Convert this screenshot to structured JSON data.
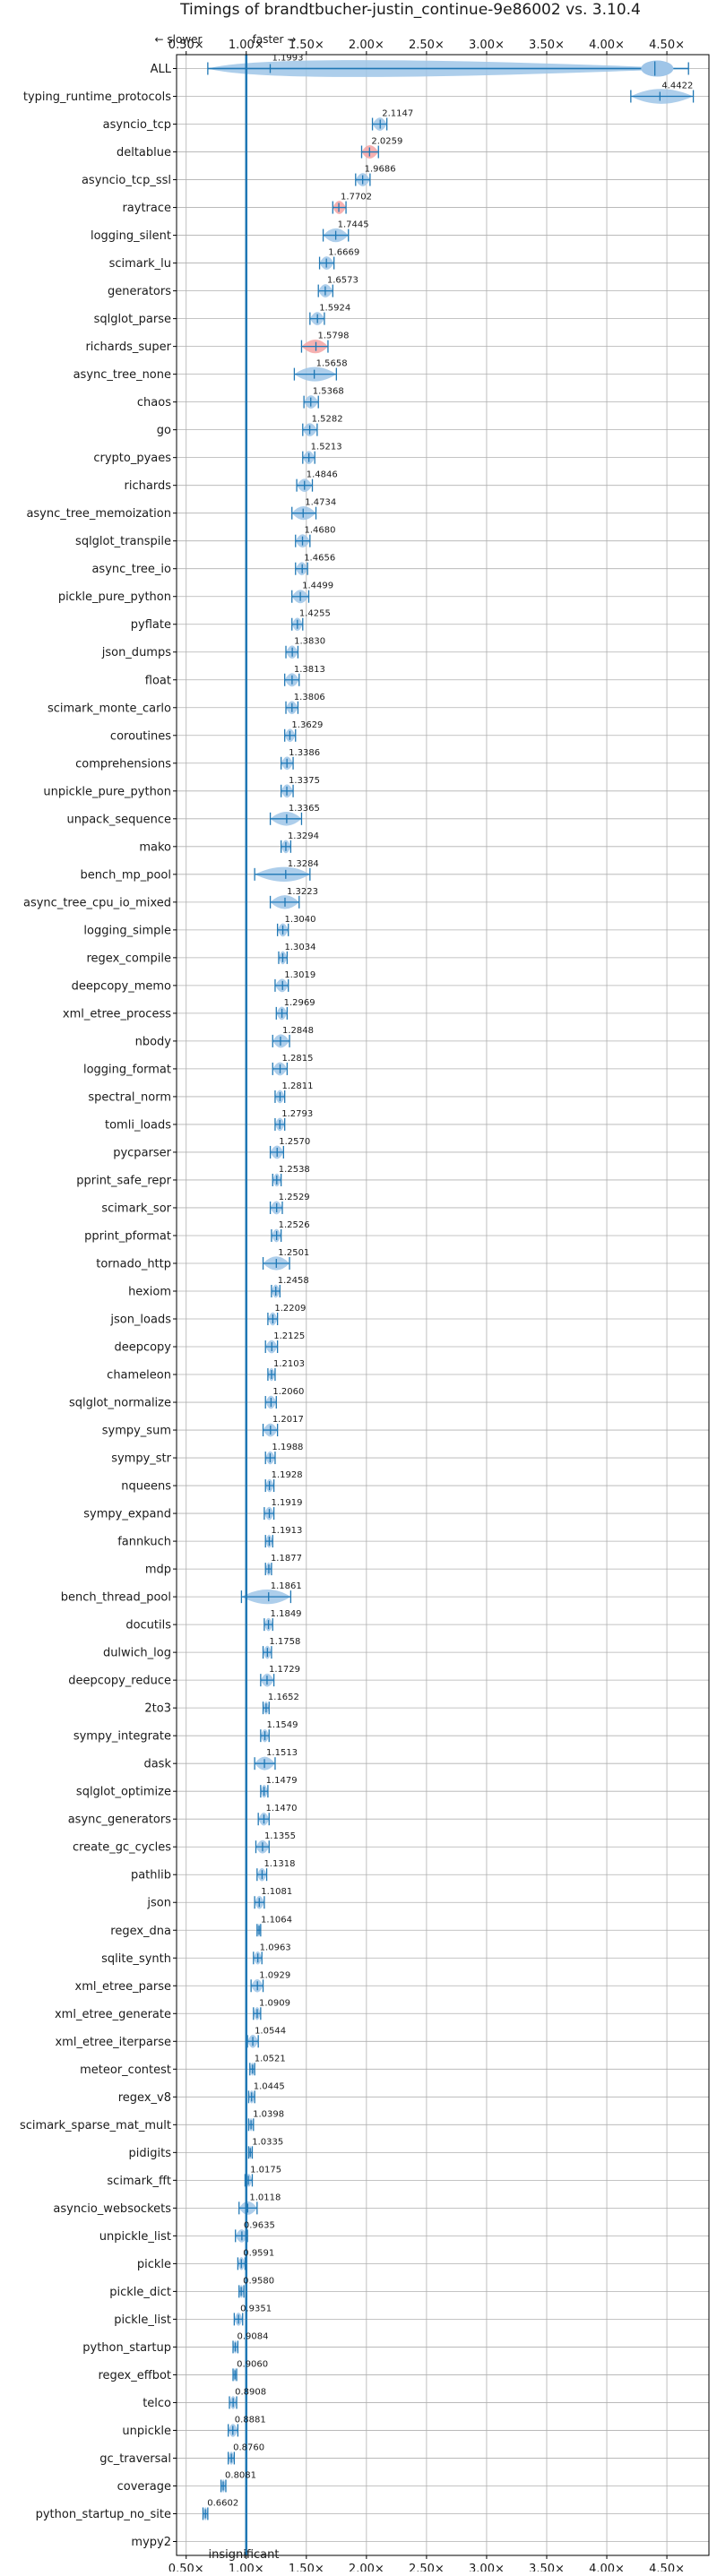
{
  "chart_data": {
    "type": "violin",
    "title": "Timings of brandtbucher-justin_continue-9e86002 vs. 3.10.4",
    "xlim": [
      0.42,
      4.85
    ],
    "xticks": [
      0.5,
      1.0,
      1.5,
      2.0,
      2.5,
      3.0,
      3.5,
      4.0,
      4.5
    ],
    "xtick_labels": [
      "0.50×",
      "1.00×",
      "1.50×",
      "2.00×",
      "2.50×",
      "3.00×",
      "3.50×",
      "4.00×",
      "4.50×"
    ],
    "reference_line": 1.0,
    "direction_labels": {
      "slower": "← slower",
      "faster": "faster →"
    },
    "insignificant_label": "insignificant",
    "grid": true,
    "colors": {
      "violin": "#9fc5e8",
      "line": "#1f77b4",
      "highlight": "#f4a3a3"
    },
    "benchmarks": [
      {
        "name": "ALL",
        "value": 1.1993,
        "label": "1.1993",
        "min": 0.68,
        "max": 4.68
      },
      {
        "name": "typing_runtime_protocols",
        "value": 4.4422,
        "label": "4.4422",
        "min": 4.2,
        "max": 4.72
      },
      {
        "name": "asyncio_tcp",
        "value": 2.1147,
        "label": "2.1147",
        "min": 2.05,
        "max": 2.17
      },
      {
        "name": "deltablue",
        "value": 2.0259,
        "label": "2.0259",
        "min": 1.96,
        "max": 2.1
      },
      {
        "name": "asyncio_tcp_ssl",
        "value": 1.9686,
        "label": "1.9686",
        "min": 1.91,
        "max": 2.03
      },
      {
        "name": "raytrace",
        "value": 1.7702,
        "label": "1.7702",
        "min": 1.72,
        "max": 1.83
      },
      {
        "name": "logging_silent",
        "value": 1.7445,
        "label": "1.7445",
        "min": 1.64,
        "max": 1.85
      },
      {
        "name": "scimark_lu",
        "value": 1.6669,
        "label": "1.6669",
        "min": 1.61,
        "max": 1.73
      },
      {
        "name": "generators",
        "value": 1.6573,
        "label": "1.6573",
        "min": 1.6,
        "max": 1.72
      },
      {
        "name": "sqlglot_parse",
        "value": 1.5924,
        "label": "1.5924",
        "min": 1.53,
        "max": 1.65
      },
      {
        "name": "richards_super",
        "value": 1.5798,
        "label": "1.5798",
        "min": 1.46,
        "max": 1.68
      },
      {
        "name": "async_tree_none",
        "value": 1.5658,
        "label": "1.5658",
        "min": 1.4,
        "max": 1.75
      },
      {
        "name": "chaos",
        "value": 1.5368,
        "label": "1.5368",
        "min": 1.48,
        "max": 1.6
      },
      {
        "name": "go",
        "value": 1.5282,
        "label": "1.5282",
        "min": 1.47,
        "max": 1.59
      },
      {
        "name": "crypto_pyaes",
        "value": 1.5213,
        "label": "1.5213",
        "min": 1.47,
        "max": 1.57
      },
      {
        "name": "richards",
        "value": 1.4846,
        "label": "1.4846",
        "min": 1.42,
        "max": 1.55
      },
      {
        "name": "async_tree_memoization",
        "value": 1.4734,
        "label": "1.4734",
        "min": 1.38,
        "max": 1.58
      },
      {
        "name": "sqlglot_transpile",
        "value": 1.468,
        "label": "1.4680",
        "min": 1.41,
        "max": 1.53
      },
      {
        "name": "async_tree_io",
        "value": 1.4656,
        "label": "1.4656",
        "min": 1.41,
        "max": 1.51
      },
      {
        "name": "pickle_pure_python",
        "value": 1.4499,
        "label": "1.4499",
        "min": 1.38,
        "max": 1.52
      },
      {
        "name": "pyflate",
        "value": 1.4255,
        "label": "1.4255",
        "min": 1.38,
        "max": 1.47
      },
      {
        "name": "json_dumps",
        "value": 1.383,
        "label": "1.3830",
        "min": 1.33,
        "max": 1.43
      },
      {
        "name": "float",
        "value": 1.3813,
        "label": "1.3813",
        "min": 1.32,
        "max": 1.44
      },
      {
        "name": "scimark_monte_carlo",
        "value": 1.3806,
        "label": "1.3806",
        "min": 1.33,
        "max": 1.43
      },
      {
        "name": "coroutines",
        "value": 1.3629,
        "label": "1.3629",
        "min": 1.32,
        "max": 1.41
      },
      {
        "name": "comprehensions",
        "value": 1.3386,
        "label": "1.3386",
        "min": 1.29,
        "max": 1.39
      },
      {
        "name": "unpickle_pure_python",
        "value": 1.3375,
        "label": "1.3375",
        "min": 1.29,
        "max": 1.39
      },
      {
        "name": "unpack_sequence",
        "value": 1.3365,
        "label": "1.3365",
        "min": 1.2,
        "max": 1.46
      },
      {
        "name": "mako",
        "value": 1.3294,
        "label": "1.3294",
        "min": 1.29,
        "max": 1.37
      },
      {
        "name": "bench_mp_pool",
        "value": 1.3284,
        "label": "1.3284",
        "min": 1.07,
        "max": 1.53
      },
      {
        "name": "async_tree_cpu_io_mixed",
        "value": 1.3223,
        "label": "1.3223",
        "min": 1.2,
        "max": 1.44
      },
      {
        "name": "logging_simple",
        "value": 1.304,
        "label": "1.3040",
        "min": 1.26,
        "max": 1.35
      },
      {
        "name": "regex_compile",
        "value": 1.3034,
        "label": "1.3034",
        "min": 1.27,
        "max": 1.34
      },
      {
        "name": "deepcopy_memo",
        "value": 1.3019,
        "label": "1.3019",
        "min": 1.24,
        "max": 1.35
      },
      {
        "name": "xml_etree_process",
        "value": 1.2969,
        "label": "1.2969",
        "min": 1.25,
        "max": 1.34
      },
      {
        "name": "nbody",
        "value": 1.2848,
        "label": "1.2848",
        "min": 1.22,
        "max": 1.36
      },
      {
        "name": "logging_format",
        "value": 1.2815,
        "label": "1.2815",
        "min": 1.22,
        "max": 1.34
      },
      {
        "name": "spectral_norm",
        "value": 1.2811,
        "label": "1.2811",
        "min": 1.24,
        "max": 1.32
      },
      {
        "name": "tomli_loads",
        "value": 1.2793,
        "label": "1.2793",
        "min": 1.24,
        "max": 1.32
      },
      {
        "name": "pycparser",
        "value": 1.257,
        "label": "1.2570",
        "min": 1.2,
        "max": 1.31
      },
      {
        "name": "pprint_safe_repr",
        "value": 1.2538,
        "label": "1.2538",
        "min": 1.22,
        "max": 1.29
      },
      {
        "name": "scimark_sor",
        "value": 1.2529,
        "label": "1.2529",
        "min": 1.2,
        "max": 1.3
      },
      {
        "name": "pprint_pformat",
        "value": 1.2526,
        "label": "1.2526",
        "min": 1.21,
        "max": 1.29
      },
      {
        "name": "tornado_http",
        "value": 1.2501,
        "label": "1.2501",
        "min": 1.14,
        "max": 1.36
      },
      {
        "name": "hexiom",
        "value": 1.2458,
        "label": "1.2458",
        "min": 1.21,
        "max": 1.28
      },
      {
        "name": "json_loads",
        "value": 1.2209,
        "label": "1.2209",
        "min": 1.18,
        "max": 1.26
      },
      {
        "name": "deepcopy",
        "value": 1.2125,
        "label": "1.2125",
        "min": 1.16,
        "max": 1.26
      },
      {
        "name": "chameleon",
        "value": 1.2103,
        "label": "1.2103",
        "min": 1.18,
        "max": 1.24
      },
      {
        "name": "sqlglot_normalize",
        "value": 1.206,
        "label": "1.2060",
        "min": 1.16,
        "max": 1.25
      },
      {
        "name": "sympy_sum",
        "value": 1.2017,
        "label": "1.2017",
        "min": 1.14,
        "max": 1.26
      },
      {
        "name": "sympy_str",
        "value": 1.1988,
        "label": "1.1988",
        "min": 1.16,
        "max": 1.24
      },
      {
        "name": "nqueens",
        "value": 1.1928,
        "label": "1.1928",
        "min": 1.16,
        "max": 1.23
      },
      {
        "name": "sympy_expand",
        "value": 1.1919,
        "label": "1.1919",
        "min": 1.15,
        "max": 1.23
      },
      {
        "name": "fannkuch",
        "value": 1.1913,
        "label": "1.1913",
        "min": 1.16,
        "max": 1.22
      },
      {
        "name": "mdp",
        "value": 1.1877,
        "label": "1.1877",
        "min": 1.16,
        "max": 1.21
      },
      {
        "name": "bench_thread_pool",
        "value": 1.1861,
        "label": "1.1861",
        "min": 0.96,
        "max": 1.37
      },
      {
        "name": "docutils",
        "value": 1.1849,
        "label": "1.1849",
        "min": 1.15,
        "max": 1.22
      },
      {
        "name": "dulwich_log",
        "value": 1.1758,
        "label": "1.1758",
        "min": 1.14,
        "max": 1.21
      },
      {
        "name": "deepcopy_reduce",
        "value": 1.1729,
        "label": "1.1729",
        "min": 1.12,
        "max": 1.23
      },
      {
        "name": "2to3",
        "value": 1.1652,
        "label": "1.1652",
        "min": 1.14,
        "max": 1.19
      },
      {
        "name": "sympy_integrate",
        "value": 1.1549,
        "label": "1.1549",
        "min": 1.12,
        "max": 1.19
      },
      {
        "name": "dask",
        "value": 1.1513,
        "label": "1.1513",
        "min": 1.07,
        "max": 1.24
      },
      {
        "name": "sqlglot_optimize",
        "value": 1.1479,
        "label": "1.1479",
        "min": 1.12,
        "max": 1.18
      },
      {
        "name": "async_generators",
        "value": 1.147,
        "label": "1.1470",
        "min": 1.1,
        "max": 1.19
      },
      {
        "name": "create_gc_cycles",
        "value": 1.1355,
        "label": "1.1355",
        "min": 1.08,
        "max": 1.19
      },
      {
        "name": "pathlib",
        "value": 1.1318,
        "label": "1.1318",
        "min": 1.09,
        "max": 1.17
      },
      {
        "name": "json",
        "value": 1.1081,
        "label": "1.1081",
        "min": 1.07,
        "max": 1.15
      },
      {
        "name": "regex_dna",
        "value": 1.1064,
        "label": "1.1064",
        "min": 1.09,
        "max": 1.12
      },
      {
        "name": "sqlite_synth",
        "value": 1.0963,
        "label": "1.0963",
        "min": 1.06,
        "max": 1.13
      },
      {
        "name": "xml_etree_parse",
        "value": 1.0929,
        "label": "1.0929",
        "min": 1.04,
        "max": 1.14
      },
      {
        "name": "xml_etree_generate",
        "value": 1.0909,
        "label": "1.0909",
        "min": 1.06,
        "max": 1.12
      },
      {
        "name": "xml_etree_iterparse",
        "value": 1.0544,
        "label": "1.0544",
        "min": 1.01,
        "max": 1.1
      },
      {
        "name": "meteor_contest",
        "value": 1.0521,
        "label": "1.0521",
        "min": 1.03,
        "max": 1.07
      },
      {
        "name": "regex_v8",
        "value": 1.0445,
        "label": "1.0445",
        "min": 1.02,
        "max": 1.07
      },
      {
        "name": "scimark_sparse_mat_mult",
        "value": 1.0398,
        "label": "1.0398",
        "min": 1.02,
        "max": 1.06
      },
      {
        "name": "pidigits",
        "value": 1.0335,
        "label": "1.0335",
        "min": 1.02,
        "max": 1.05
      },
      {
        "name": "scimark_fft",
        "value": 1.0175,
        "label": "1.0175",
        "min": 0.99,
        "max": 1.05
      },
      {
        "name": "asyncio_websockets",
        "value": 1.0118,
        "label": "1.0118",
        "min": 0.94,
        "max": 1.09
      },
      {
        "name": "unpickle_list",
        "value": 0.9635,
        "label": "0.9635",
        "min": 0.91,
        "max": 1.01
      },
      {
        "name": "pickle",
        "value": 0.9591,
        "label": "0.9591",
        "min": 0.93,
        "max": 0.99
      },
      {
        "name": "pickle_dict",
        "value": 0.958,
        "label": "0.9580",
        "min": 0.94,
        "max": 0.98
      },
      {
        "name": "pickle_list",
        "value": 0.9351,
        "label": "0.9351",
        "min": 0.9,
        "max": 0.97
      },
      {
        "name": "python_startup",
        "value": 0.9084,
        "label": "0.9084",
        "min": 0.89,
        "max": 0.93
      },
      {
        "name": "regex_effbot",
        "value": 0.906,
        "label": "0.9060",
        "min": 0.89,
        "max": 0.92
      },
      {
        "name": "telco",
        "value": 0.8908,
        "label": "0.8908",
        "min": 0.86,
        "max": 0.92
      },
      {
        "name": "unpickle",
        "value": 0.8881,
        "label": "0.8881",
        "min": 0.85,
        "max": 0.93
      },
      {
        "name": "gc_traversal",
        "value": 0.876,
        "label": "0.8760",
        "min": 0.85,
        "max": 0.9
      },
      {
        "name": "coverage",
        "value": 0.8081,
        "label": "0.8081",
        "min": 0.79,
        "max": 0.83
      },
      {
        "name": "python_startup_no_site",
        "value": 0.6602,
        "label": "0.6602",
        "min": 0.64,
        "max": 0.68
      },
      {
        "name": "mypy2",
        "value": 1.0,
        "label": "",
        "min": 1.0,
        "max": 1.0,
        "insignificant": true
      }
    ]
  }
}
